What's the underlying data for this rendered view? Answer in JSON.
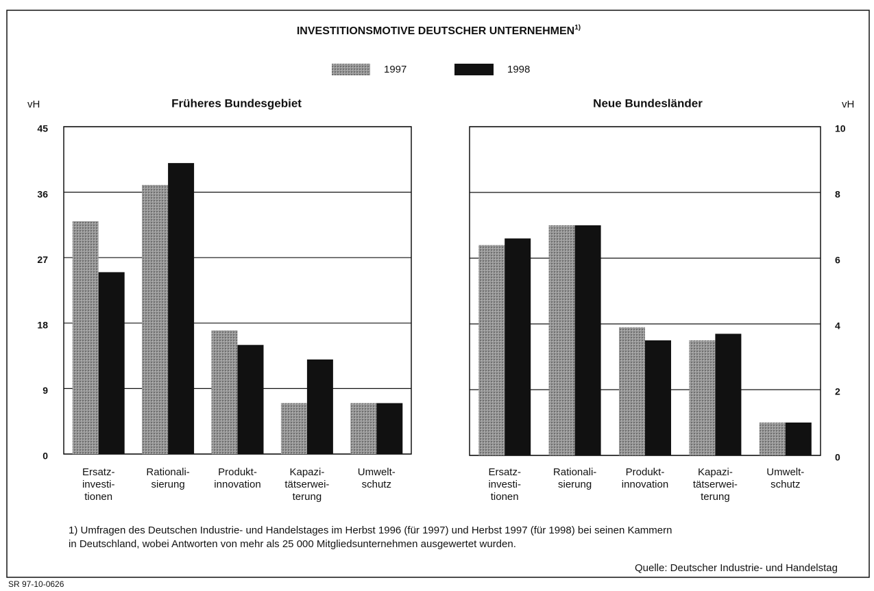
{
  "title": "INVESTITIONSMOTIVE DEUTSCHER UNTERNEHMEN",
  "title_note": "1)",
  "footnote": [
    "1) Umfragen des Deutschen Industrie- und Handelstages im Herbst 1996 (für 1997) und Herbst 1997 (für 1998) bei seinen Kammern",
    "in Deutschland, wobei Antworten von mehr als 25 000 Mitgliedsunternehmen ausgewertet wurden."
  ],
  "source": "Quelle: Deutscher Industrie- und Handelstag",
  "code": "SR 97-10-0626",
  "chart_data": [
    {
      "type": "bar",
      "title": "Früheres Bundesgebiet",
      "ylabel": "vH",
      "categories": [
        [
          "Ersatz-",
          "investi-",
          "tionen"
        ],
        [
          "Rationali-",
          "sierung"
        ],
        [
          "Produkt-",
          "innovation"
        ],
        [
          "Kapazi-",
          "tätserwei-",
          "terung"
        ],
        [
          "Umwelt-",
          "schutz"
        ]
      ],
      "series": [
        {
          "name": "1997",
          "color": "#8f8f8f",
          "values": [
            32,
            37,
            17,
            7,
            7
          ]
        },
        {
          "name": "1998",
          "color": "#111111",
          "values": [
            25,
            40,
            15,
            13,
            7
          ]
        }
      ],
      "ylim": [
        0,
        45
      ],
      "yticks": [
        0,
        9,
        18,
        27,
        36,
        45
      ],
      "grid": true
    },
    {
      "type": "bar",
      "title": "Neue Bundesländer",
      "ylabel": "vH",
      "categories": [
        [
          "Ersatz-",
          "investi-",
          "tionen"
        ],
        [
          "Rationali-",
          "sierung"
        ],
        [
          "Produkt-",
          "innovation"
        ],
        [
          "Kapazi-",
          "tätserwei-",
          "terung"
        ],
        [
          "Umwelt-",
          "schutz"
        ]
      ],
      "series": [
        {
          "name": "1997",
          "color": "#8f8f8f",
          "values": [
            6.4,
            7,
            3.9,
            3.5,
            1
          ]
        },
        {
          "name": "1998",
          "color": "#111111",
          "values": [
            6.6,
            7,
            3.5,
            3.7,
            1
          ]
        }
      ],
      "ylim": [
        0,
        10
      ],
      "yticks": [
        0,
        2,
        4,
        6,
        8,
        10
      ],
      "grid": true
    }
  ]
}
